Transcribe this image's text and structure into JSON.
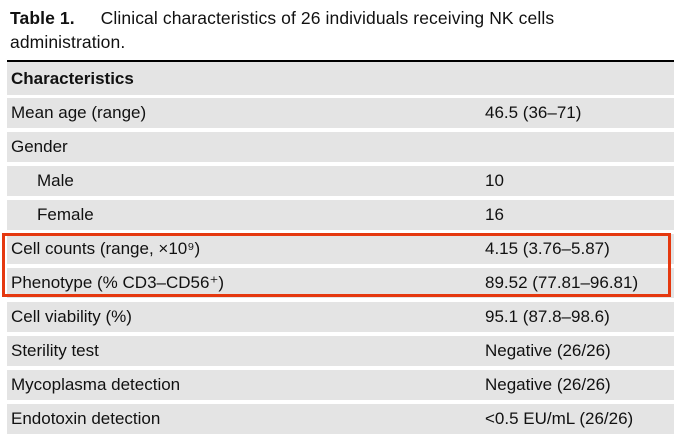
{
  "caption": {
    "label": "Table 1.",
    "line1": "Clinical characteristics of 26 individuals receiving NK cells",
    "line2": "administration."
  },
  "table": {
    "header": "Characteristics",
    "rows": [
      {
        "label": "Mean age (range)",
        "value": "46.5 (36–71)",
        "indent": false,
        "highlighted": false
      },
      {
        "label": "Gender",
        "value": "",
        "indent": false,
        "highlighted": false
      },
      {
        "label": "Male",
        "value": "10",
        "indent": true,
        "highlighted": false
      },
      {
        "label": "Female",
        "value": "16",
        "indent": true,
        "highlighted": false
      },
      {
        "label": "Cell counts (range, ×10⁹)",
        "value": "4.15 (3.76–5.87)",
        "indent": false,
        "highlighted": true
      },
      {
        "label": "Phenotype (% CD3–CD56⁺)",
        "value": "89.52 (77.81–96.81)",
        "indent": false,
        "highlighted": true
      },
      {
        "label": "Cell viability (%)",
        "value": "95.1 (87.8–98.6)",
        "indent": false,
        "highlighted": false
      },
      {
        "label": "Sterility test",
        "value": "Negative (26/26)",
        "indent": false,
        "highlighted": false
      },
      {
        "label": "Mycoplasma detection",
        "value": "Negative (26/26)",
        "indent": false,
        "highlighted": false
      },
      {
        "label": "Endotoxin detection",
        "value": "<0.5 EU/mL (26/26)",
        "indent": false,
        "highlighted": false
      }
    ]
  },
  "colors": {
    "row_background": "#e4e4e4",
    "text": "#111111",
    "top_rule": "#000000",
    "highlight_border": "#e5380f"
  }
}
